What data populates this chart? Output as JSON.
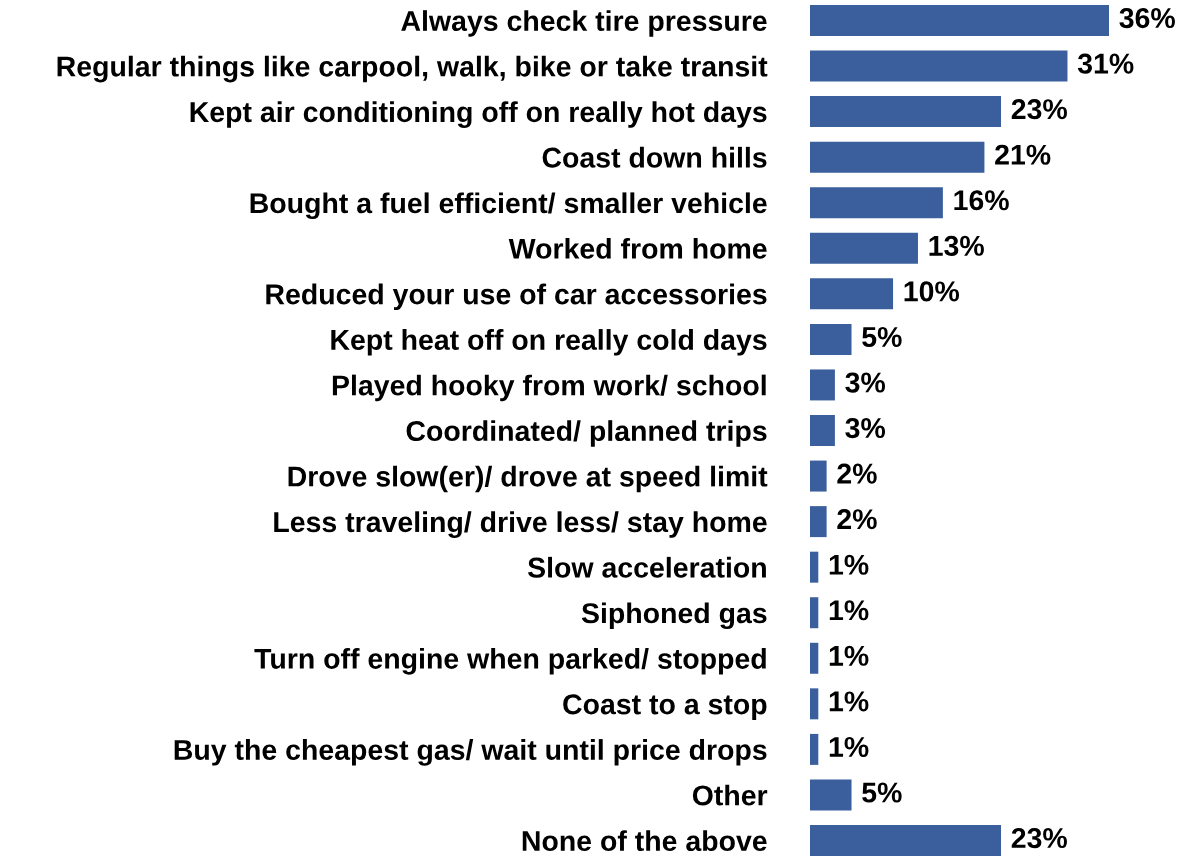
{
  "chart_data": {
    "type": "bar",
    "orientation": "horizontal",
    "categories": [
      "Always check tire pressure",
      "Regular things like carpool, walk, bike or take transit",
      "Kept air conditioning off on really hot days",
      "Coast down hills",
      "Bought a fuel efficient/ smaller vehicle",
      "Worked from home",
      "Reduced your use of car accessories",
      "Kept heat off on really cold days",
      "Played hooky from work/ school",
      "Coordinated/ planned trips",
      "Drove slow(er)/ drove at speed limit",
      "Less traveling/ drive less/ stay home",
      "Slow acceleration",
      "Siphoned gas",
      "Turn off engine when parked/ stopped",
      "Coast to a stop",
      "Buy the cheapest gas/ wait until price drops",
      "Other",
      "None of the above"
    ],
    "values": [
      36,
      31,
      23,
      21,
      16,
      13,
      10,
      5,
      3,
      3,
      2,
      2,
      1,
      1,
      1,
      1,
      1,
      5,
      23
    ],
    "value_labels": [
      "36%",
      "31%",
      "23%",
      "21%",
      "16%",
      "13%",
      "10%",
      "5%",
      "3%",
      "3%",
      "2%",
      "2%",
      "1%",
      "1%",
      "1%",
      "1%",
      "1%",
      "5%",
      "23%"
    ],
    "color": "#3a5f9c",
    "xlim": [
      0,
      36
    ],
    "tick_labels": "y",
    "grid": false,
    "legend": false
  }
}
